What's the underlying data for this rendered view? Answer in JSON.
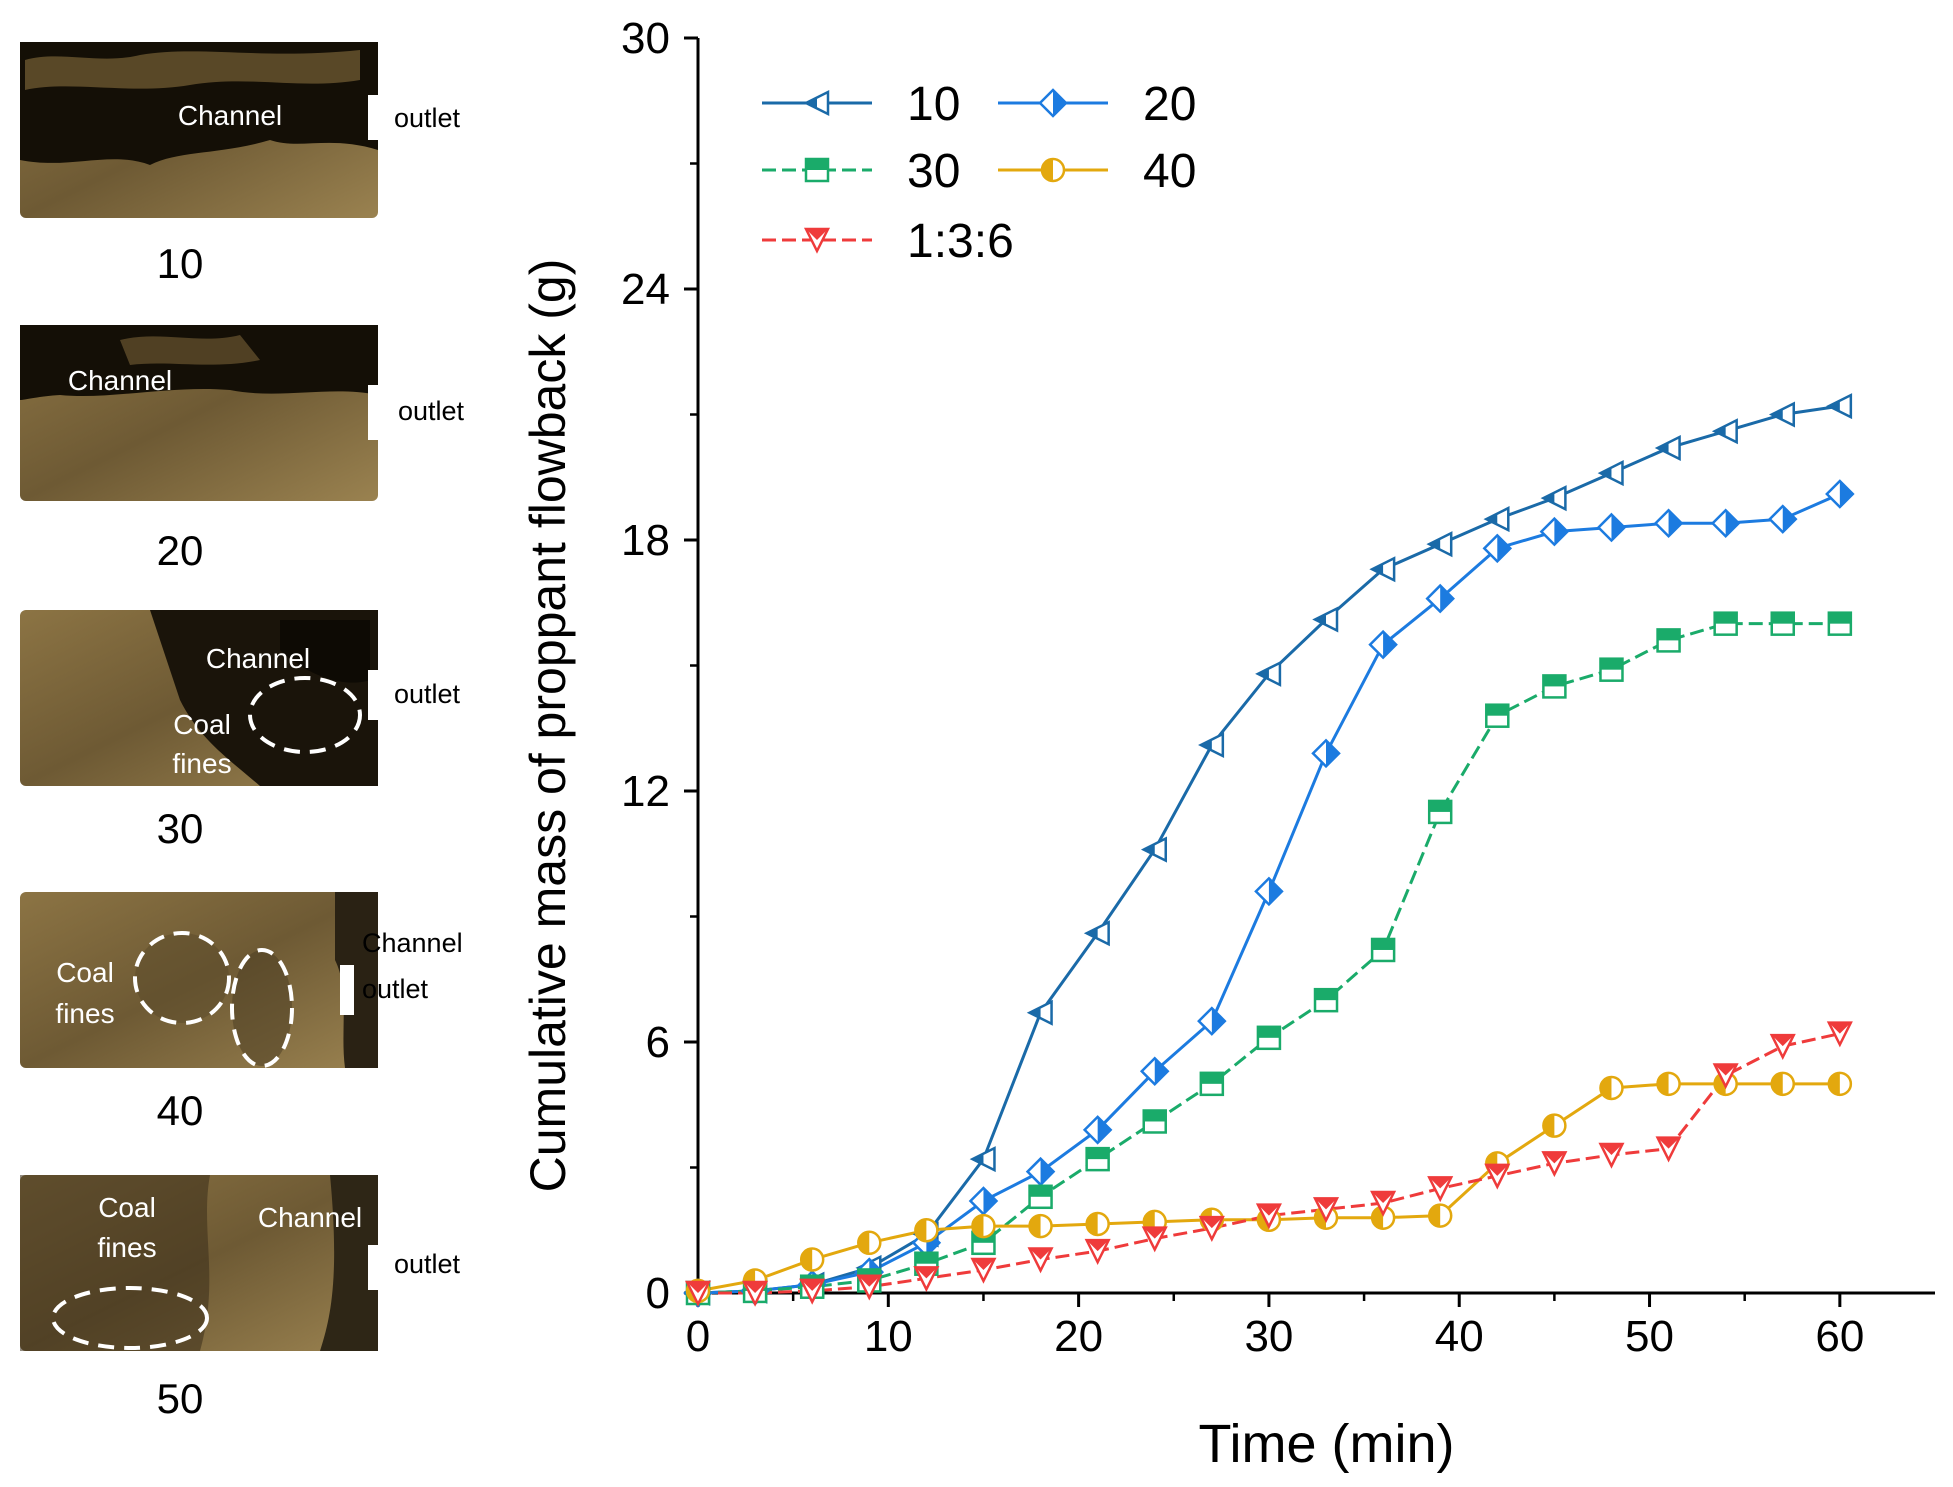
{
  "photos": [
    {
      "number": "10",
      "labels": [
        "Channel",
        "outlet"
      ]
    },
    {
      "number": "20",
      "labels": [
        "Channel",
        "outlet"
      ]
    },
    {
      "number": "30",
      "labels": [
        "Channel",
        "outlet",
        "Coal",
        "fines"
      ]
    },
    {
      "number": "40",
      "labels": [
        "Channel",
        "outlet",
        "Coal",
        "fines"
      ]
    },
    {
      "number": "50",
      "labels": [
        "Coal",
        "fines",
        "Channel",
        "outlet"
      ]
    }
  ],
  "chart_data": {
    "type": "line",
    "title": "",
    "xlabel": "Time (min)",
    "ylabel": "Cumulative mass of proppant flowback (g)",
    "xlim": [
      0,
      65
    ],
    "ylim": [
      0,
      30
    ],
    "xticks": [
      "0",
      "10",
      "20",
      "30",
      "40",
      "50",
      "60"
    ],
    "yticks": [
      "0",
      "6",
      "12",
      "18",
      "24",
      "30"
    ],
    "legend_position": "top-left",
    "series": [
      {
        "name": "10",
        "color": "#1a6aa8",
        "marker": "triangle-left",
        "dash": "solid",
        "x": [
          0,
          3,
          6,
          9,
          12,
          15,
          18,
          21,
          24,
          27,
          30,
          33,
          36,
          39,
          42,
          45,
          48,
          51,
          54,
          57,
          60
        ],
        "y": [
          0,
          0.05,
          0.2,
          0.6,
          1.4,
          3.2,
          6.7,
          8.6,
          10.6,
          13.1,
          14.8,
          16.1,
          17.3,
          17.9,
          18.5,
          19.0,
          19.6,
          20.2,
          20.6,
          21.0,
          21.2
        ]
      },
      {
        "name": "20",
        "color": "#1c7be0",
        "marker": "diamond-half",
        "dash": "solid",
        "x": [
          0,
          3,
          6,
          9,
          12,
          15,
          18,
          21,
          24,
          27,
          30,
          33,
          36,
          39,
          42,
          45,
          48,
          51,
          54,
          57,
          60
        ],
        "y": [
          0,
          0.05,
          0.2,
          0.5,
          1.2,
          2.2,
          2.9,
          3.9,
          5.3,
          6.5,
          9.6,
          12.9,
          15.5,
          16.6,
          17.8,
          18.2,
          18.3,
          18.4,
          18.4,
          18.5,
          19.1
        ]
      },
      {
        "name": "30",
        "color": "#1aab6a",
        "marker": "square-half",
        "dash": "dashed",
        "x": [
          0,
          3,
          6,
          9,
          12,
          15,
          18,
          21,
          24,
          27,
          30,
          33,
          36,
          39,
          42,
          45,
          48,
          51,
          54,
          57,
          60
        ],
        "y": [
          0,
          0.05,
          0.15,
          0.3,
          0.7,
          1.2,
          2.3,
          3.2,
          4.1,
          5.0,
          6.1,
          7.0,
          8.2,
          11.5,
          13.8,
          14.5,
          14.9,
          15.6,
          16.0,
          16.0,
          16.0
        ]
      },
      {
        "name": "40",
        "color": "#e3a80e",
        "marker": "circle-half",
        "dash": "solid",
        "x": [
          0,
          3,
          6,
          9,
          12,
          15,
          18,
          21,
          24,
          27,
          30,
          33,
          36,
          39,
          42,
          45,
          48,
          51,
          54,
          57,
          60
        ],
        "y": [
          0.05,
          0.3,
          0.8,
          1.2,
          1.5,
          1.6,
          1.6,
          1.65,
          1.7,
          1.75,
          1.75,
          1.8,
          1.8,
          1.85,
          3.1,
          4.0,
          4.9,
          5.0,
          5.0,
          5.0,
          5.0
        ]
      },
      {
        "name": "1:3:6",
        "color": "#ef3b3b",
        "marker": "triangle-down",
        "dash": "dashed",
        "x": [
          0,
          3,
          6,
          9,
          12,
          15,
          18,
          21,
          24,
          27,
          30,
          33,
          36,
          39,
          42,
          45,
          48,
          51,
          54,
          57,
          60
        ],
        "y": [
          0,
          0.0,
          0.05,
          0.15,
          0.35,
          0.55,
          0.8,
          1.0,
          1.3,
          1.55,
          1.85,
          2.0,
          2.15,
          2.5,
          2.8,
          3.1,
          3.3,
          3.45,
          5.2,
          5.9,
          6.2
        ]
      }
    ]
  }
}
